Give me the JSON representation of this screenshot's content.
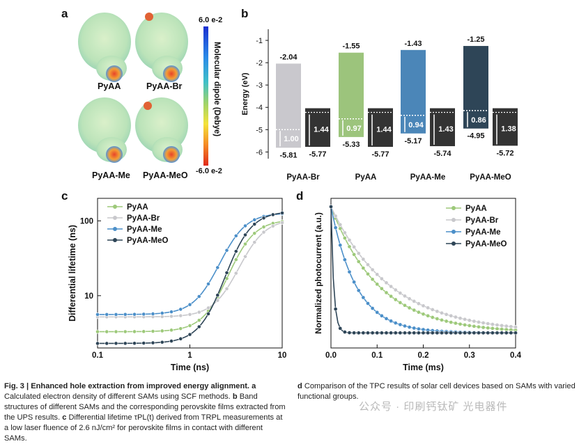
{
  "panels": {
    "a": "a",
    "b": "b",
    "c": "c",
    "d": "d"
  },
  "panel_a": {
    "molecules": [
      "PyAA",
      "PyAA-Br",
      "PyAA-Me",
      "PyAA-MeO"
    ],
    "colorbar_top": "6.0 e-2",
    "colorbar_bottom": "-6.0 e-2",
    "colorbar_title": "Molecular dipole (Debye)"
  },
  "chart_data": [
    {
      "type": "bar",
      "ylabel": "Energy (eV)",
      "yticks": [
        "-1",
        "-2",
        "-3",
        "-4",
        "-5",
        "-6"
      ],
      "ylim": [
        -6.3,
        -0.5
      ],
      "categories": [
        "PyAA-Br",
        "PyAA",
        "PyAA-Me",
        "PyAA-MeO"
      ],
      "sam_bars": [
        {
          "top": -2.04,
          "bottom": -5.81,
          "top_label": "-2.04",
          "bottom_label": "-5.81",
          "offset": "1.00",
          "color": "#c9c8cd"
        },
        {
          "top": -1.55,
          "bottom": -5.33,
          "top_label": "-1.55",
          "bottom_label": "-5.33",
          "offset": "0.97",
          "color": "#9cc47c"
        },
        {
          "top": -1.43,
          "bottom": -5.17,
          "top_label": "-1.43",
          "bottom_label": "-5.17",
          "offset": "0.94",
          "color": "#4b86b8"
        },
        {
          "top": -1.25,
          "bottom": -4.95,
          "top_label": "-1.25",
          "bottom_label": "-4.95",
          "offset": "0.86",
          "color": "#2e4557"
        }
      ],
      "perovskite_bars": [
        {
          "top": -4.04,
          "bottom": -5.77,
          "bottom_label": "-5.77",
          "offset": "1.44"
        },
        {
          "top": -4.04,
          "bottom": -5.77,
          "bottom_label": "-5.77",
          "offset": "1.44"
        },
        {
          "top": -4.04,
          "bottom": -5.74,
          "bottom_label": "-5.74",
          "offset": "1.43"
        },
        {
          "top": -4.04,
          "bottom": -5.72,
          "bottom_label": "-5.72",
          "offset": "1.38"
        }
      ]
    },
    {
      "type": "line",
      "xlabel": "Time (ns)",
      "ylabel": "Differential lifetime (ns)",
      "xscale": "log",
      "yscale": "log",
      "xlim": [
        0.1,
        10
      ],
      "ylim": [
        2,
        200
      ],
      "xticks": [
        "0.1",
        "1",
        "10"
      ],
      "yticks": [
        "10",
        "100"
      ],
      "legend_position": "top-left",
      "series": [
        {
          "name": "PyAA",
          "color": "#9dc97a",
          "start": 3.3,
          "end": 104,
          "mid": 2.6
        },
        {
          "name": "PyAA-Br",
          "color": "#c8c8cc",
          "start": 5.2,
          "end": 106,
          "mid": 3.4
        },
        {
          "name": "PyAA-Me",
          "color": "#4b8fc9",
          "start": 5.6,
          "end": 128,
          "mid": 2.1
        },
        {
          "name": "PyAA-MeO",
          "color": "#2e4557",
          "start": 2.3,
          "end": 135,
          "mid": 2.4
        }
      ]
    },
    {
      "type": "line",
      "xlabel": "Time (ms)",
      "ylabel": "Normalized photocurrent (a.u.)",
      "xlim": [
        0,
        0.4
      ],
      "xticks": [
        "0.0",
        "0.1",
        "0.2",
        "0.3",
        "0.4"
      ],
      "legend_position": "top-right",
      "series": [
        {
          "name": "PyAA",
          "color": "#9dc97a",
          "tau": 0.105
        },
        {
          "name": "PyAA-Br",
          "color": "#c8c8cc",
          "tau": 0.13
        },
        {
          "name": "PyAA-Me",
          "color": "#4b8fc9",
          "tau": 0.055
        },
        {
          "name": "PyAA-MeO",
          "color": "#2e4557",
          "tau": 0.006
        }
      ]
    }
  ],
  "caption": {
    "fig": "Fig. 3 | Enhanced hole extraction from improved energy alignment.",
    "a_label": "a",
    "a_text": "Calculated electron density of different SAMs using SCF methods.",
    "b_label": "b",
    "b_text": "Band structures of different SAMs and the corresponding perovskite films extracted from the UPS results.",
    "c_label": "c",
    "c_text": "Differential lifetime τPL(t) derived from TRPL measurements at a low laser fluence of 2.6 nJ/cm² for perovskite films in contact with different SAMs.",
    "d_label": "d",
    "d_text": "Comparison of the TPC results of solar cell devices based on SAMs with varied functional groups."
  },
  "watermark": "公众号 · 印刷钙钛矿 光电器件"
}
